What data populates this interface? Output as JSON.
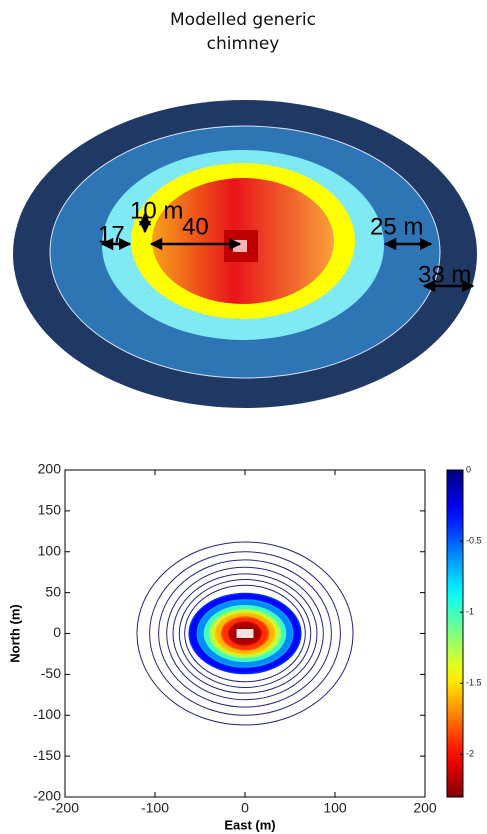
{
  "diagram": {
    "title": "Modelled generic chimney",
    "labels": [
      "17",
      "10 m",
      "40",
      "25 m",
      "38 m"
    ]
  },
  "chart_data": {
    "type": "contour",
    "xlabel": "East (m)",
    "ylabel": "North (m)",
    "xlim": [
      -200,
      200
    ],
    "ylim": [
      -200,
      200
    ],
    "xticks": [
      -200,
      -100,
      0,
      100,
      200
    ],
    "yticks": [
      -200,
      -150,
      -100,
      -50,
      0,
      50,
      100,
      150,
      200
    ],
    "colormap": "jet",
    "clim": [
      -2.3,
      0
    ],
    "cticks": [
      0,
      -0.5,
      -1,
      -1.5,
      -2
    ],
    "contours": [
      {
        "level": -0.02,
        "rx": 120,
        "ry": 112,
        "filled": false
      },
      {
        "level": -0.04,
        "rx": 106,
        "ry": 100,
        "filled": false
      },
      {
        "level": -0.06,
        "rx": 96,
        "ry": 90,
        "filled": false
      },
      {
        "level": -0.08,
        "rx": 87,
        "ry": 81,
        "filled": false
      },
      {
        "level": -0.1,
        "rx": 80,
        "ry": 73,
        "filled": false
      },
      {
        "level": -0.15,
        "rx": 73,
        "ry": 66,
        "filled": false
      },
      {
        "level": -0.2,
        "rx": 67,
        "ry": 59,
        "filled": false
      },
      {
        "level": -0.3,
        "rx": 62,
        "ry": 49,
        "filled": true
      },
      {
        "level": -0.6,
        "rx": 53,
        "ry": 41,
        "filled": true
      },
      {
        "level": -1,
        "rx": 45,
        "ry": 34,
        "filled": true
      },
      {
        "level": -1.3,
        "rx": 39,
        "ry": 29,
        "filled": true
      },
      {
        "level": -1.6,
        "rx": 33,
        "ry": 25,
        "filled": true
      },
      {
        "level": -1.9,
        "rx": 26,
        "ry": 20,
        "filled": true
      },
      {
        "level": -2.2,
        "rx": 18,
        "ry": 14,
        "filled": true
      }
    ]
  }
}
